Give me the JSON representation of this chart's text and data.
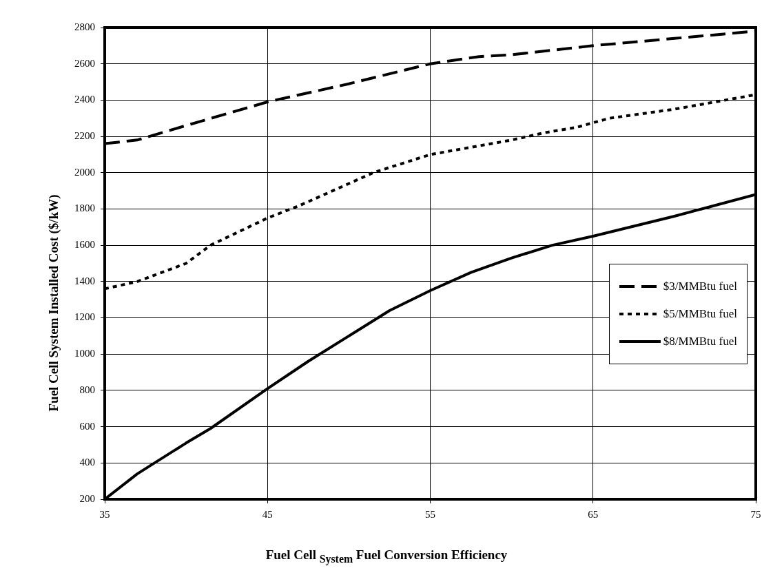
{
  "chart_data": {
    "type": "line",
    "xlabel": "Fuel Cell $_{System}$ Fuel Conversion Efficiency",
    "ylabel": "Fuel Cell System  Installed Cost ($/kW)",
    "xlim": [
      35,
      75
    ],
    "xticks": [
      35,
      45,
      55,
      65,
      75
    ],
    "ylim": [
      200,
      2800
    ],
    "yticks": [
      200,
      400,
      600,
      800,
      1000,
      1200,
      1400,
      1600,
      1800,
      2000,
      2200,
      2400,
      2600,
      2800
    ],
    "grid": true,
    "legend": "right",
    "marker": "none",
    "series": [
      {
        "name": "$3/MMBtu fuel",
        "color": "#000000",
        "line_style": "dashed",
        "x": [
          35,
          37,
          40,
          45,
          50,
          55,
          58,
          60,
          65,
          70,
          75
        ],
        "values": [
          2160,
          2180,
          2260,
          2390,
          2490,
          2600,
          2640,
          2650,
          2700,
          2740,
          2780
        ]
      },
      {
        "name": "$5/MMBtu fuel",
        "color": "#000000",
        "line_style": "dotted",
        "x": [
          35,
          37,
          40,
          41.5,
          45,
          47,
          49,
          51.5,
          55,
          60,
          62,
          64,
          66,
          70,
          75
        ],
        "values": [
          1360,
          1400,
          1500,
          1600,
          1750,
          1820,
          1900,
          2000,
          2100,
          2180,
          2220,
          2250,
          2300,
          2350,
          2430
        ]
      },
      {
        "name": "$8/MMBtu fuel",
        "color": "#000000",
        "line_style": "solid",
        "x": [
          35,
          37,
          40,
          41.5,
          45,
          47.5,
          50,
          52.5,
          55,
          57.5,
          60,
          62.5,
          65,
          70,
          75
        ],
        "values": [
          200,
          340,
          510,
          590,
          810,
          960,
          1100,
          1240,
          1350,
          1450,
          1530,
          1600,
          1650,
          1760,
          1880
        ]
      }
    ]
  }
}
